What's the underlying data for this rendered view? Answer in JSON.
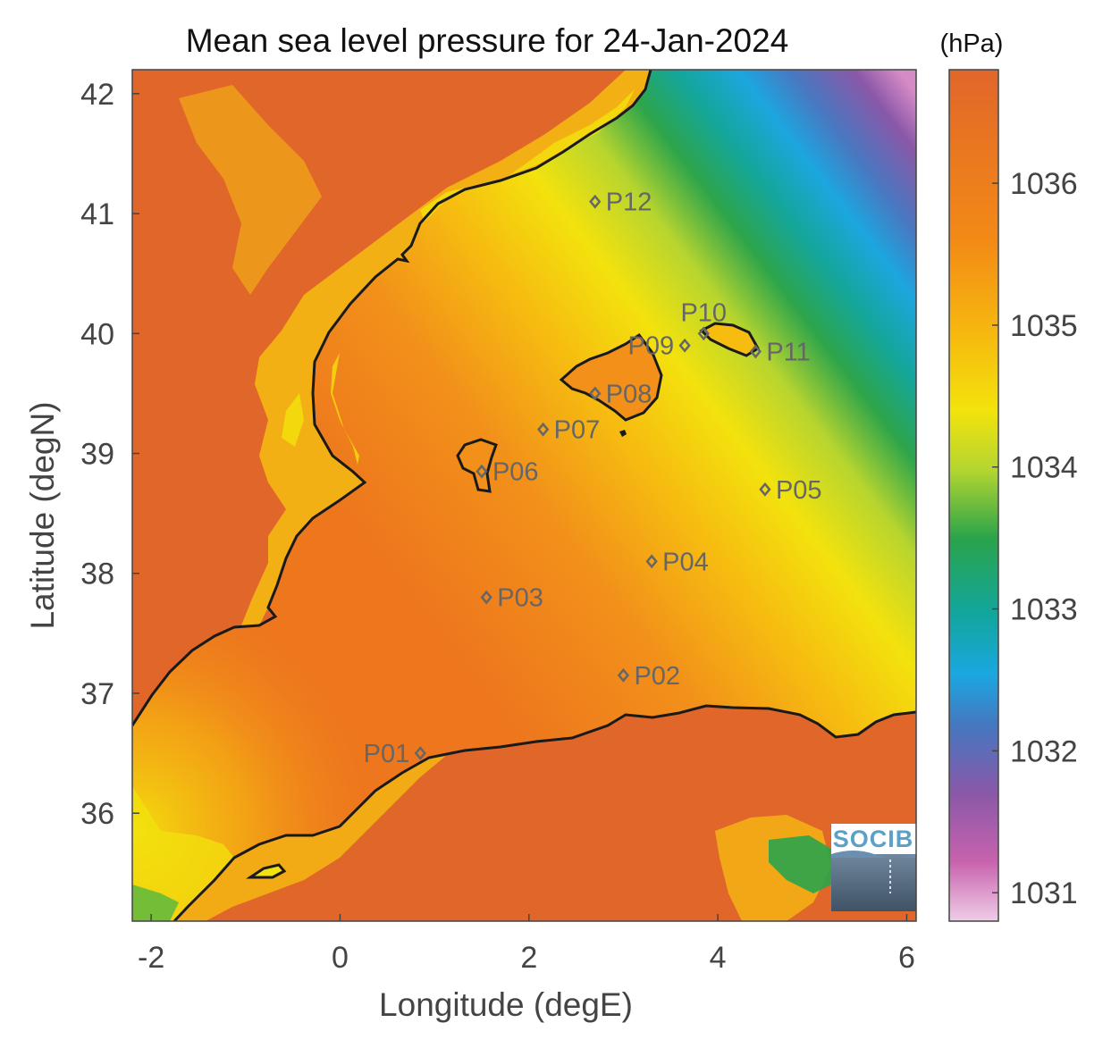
{
  "title": "Mean sea level pressure for 24-Jan-2024",
  "colorbar": {
    "unit_label": "(hPa)",
    "range": [
      1030.8,
      1036.8
    ],
    "ticks": [
      "1036",
      "1035",
      "1034",
      "1033",
      "1032",
      "1031"
    ],
    "tick_values": [
      1036,
      1035,
      1034,
      1033,
      1032,
      1031
    ],
    "colors": {
      "high": "#e1662a",
      "orange": "#f07a1c",
      "amber": "#f6b80f",
      "yellow": "#f3e30c",
      "lime": "#b4d630",
      "green": "#2aa44a",
      "teal": "#12a69e",
      "blue": "#1aa7e0",
      "steel": "#4577c0",
      "purple": "#8a58a8",
      "magenta": "#c862ad",
      "pink": "#efcde8"
    }
  },
  "axes": {
    "xlabel": "Longitude (degE)",
    "ylabel": "Latitude (degN)",
    "xlim": [
      -2.2,
      6.1
    ],
    "ylim": [
      35.1,
      42.2
    ],
    "xticks": [
      "-2",
      "0",
      "2",
      "4",
      "6"
    ],
    "xtick_values": [
      -2,
      0,
      2,
      4,
      6
    ],
    "yticks": [
      "42",
      "41",
      "40",
      "39",
      "38",
      "37",
      "36"
    ],
    "ytick_values": [
      42,
      41,
      40,
      39,
      38,
      37,
      36
    ]
  },
  "stations": [
    {
      "name": "P01",
      "lon": 0.85,
      "lat": 36.5,
      "label_side": "left"
    },
    {
      "name": "P02",
      "lon": 3.0,
      "lat": 37.15,
      "label_side": "right"
    },
    {
      "name": "P03",
      "lon": 1.55,
      "lat": 37.8,
      "label_side": "right"
    },
    {
      "name": "P04",
      "lon": 3.3,
      "lat": 38.1,
      "label_side": "right"
    },
    {
      "name": "P05",
      "lon": 4.5,
      "lat": 38.7,
      "label_side": "right"
    },
    {
      "name": "P06",
      "lon": 1.5,
      "lat": 38.85,
      "label_side": "right"
    },
    {
      "name": "P07",
      "lon": 2.15,
      "lat": 39.2,
      "label_side": "right"
    },
    {
      "name": "P08",
      "lon": 2.7,
      "lat": 39.5,
      "label_side": "right"
    },
    {
      "name": "P09",
      "lon": 3.65,
      "lat": 39.9,
      "label_side": "left"
    },
    {
      "name": "P10",
      "lon": 3.85,
      "lat": 40.0,
      "label_side": "top"
    },
    {
      "name": "P11",
      "lon": 4.4,
      "lat": 39.85,
      "label_side": "right"
    },
    {
      "name": "P12",
      "lon": 2.7,
      "lat": 41.1,
      "label_side": "right"
    }
  ],
  "logo": {
    "text": "SOCIB"
  }
}
